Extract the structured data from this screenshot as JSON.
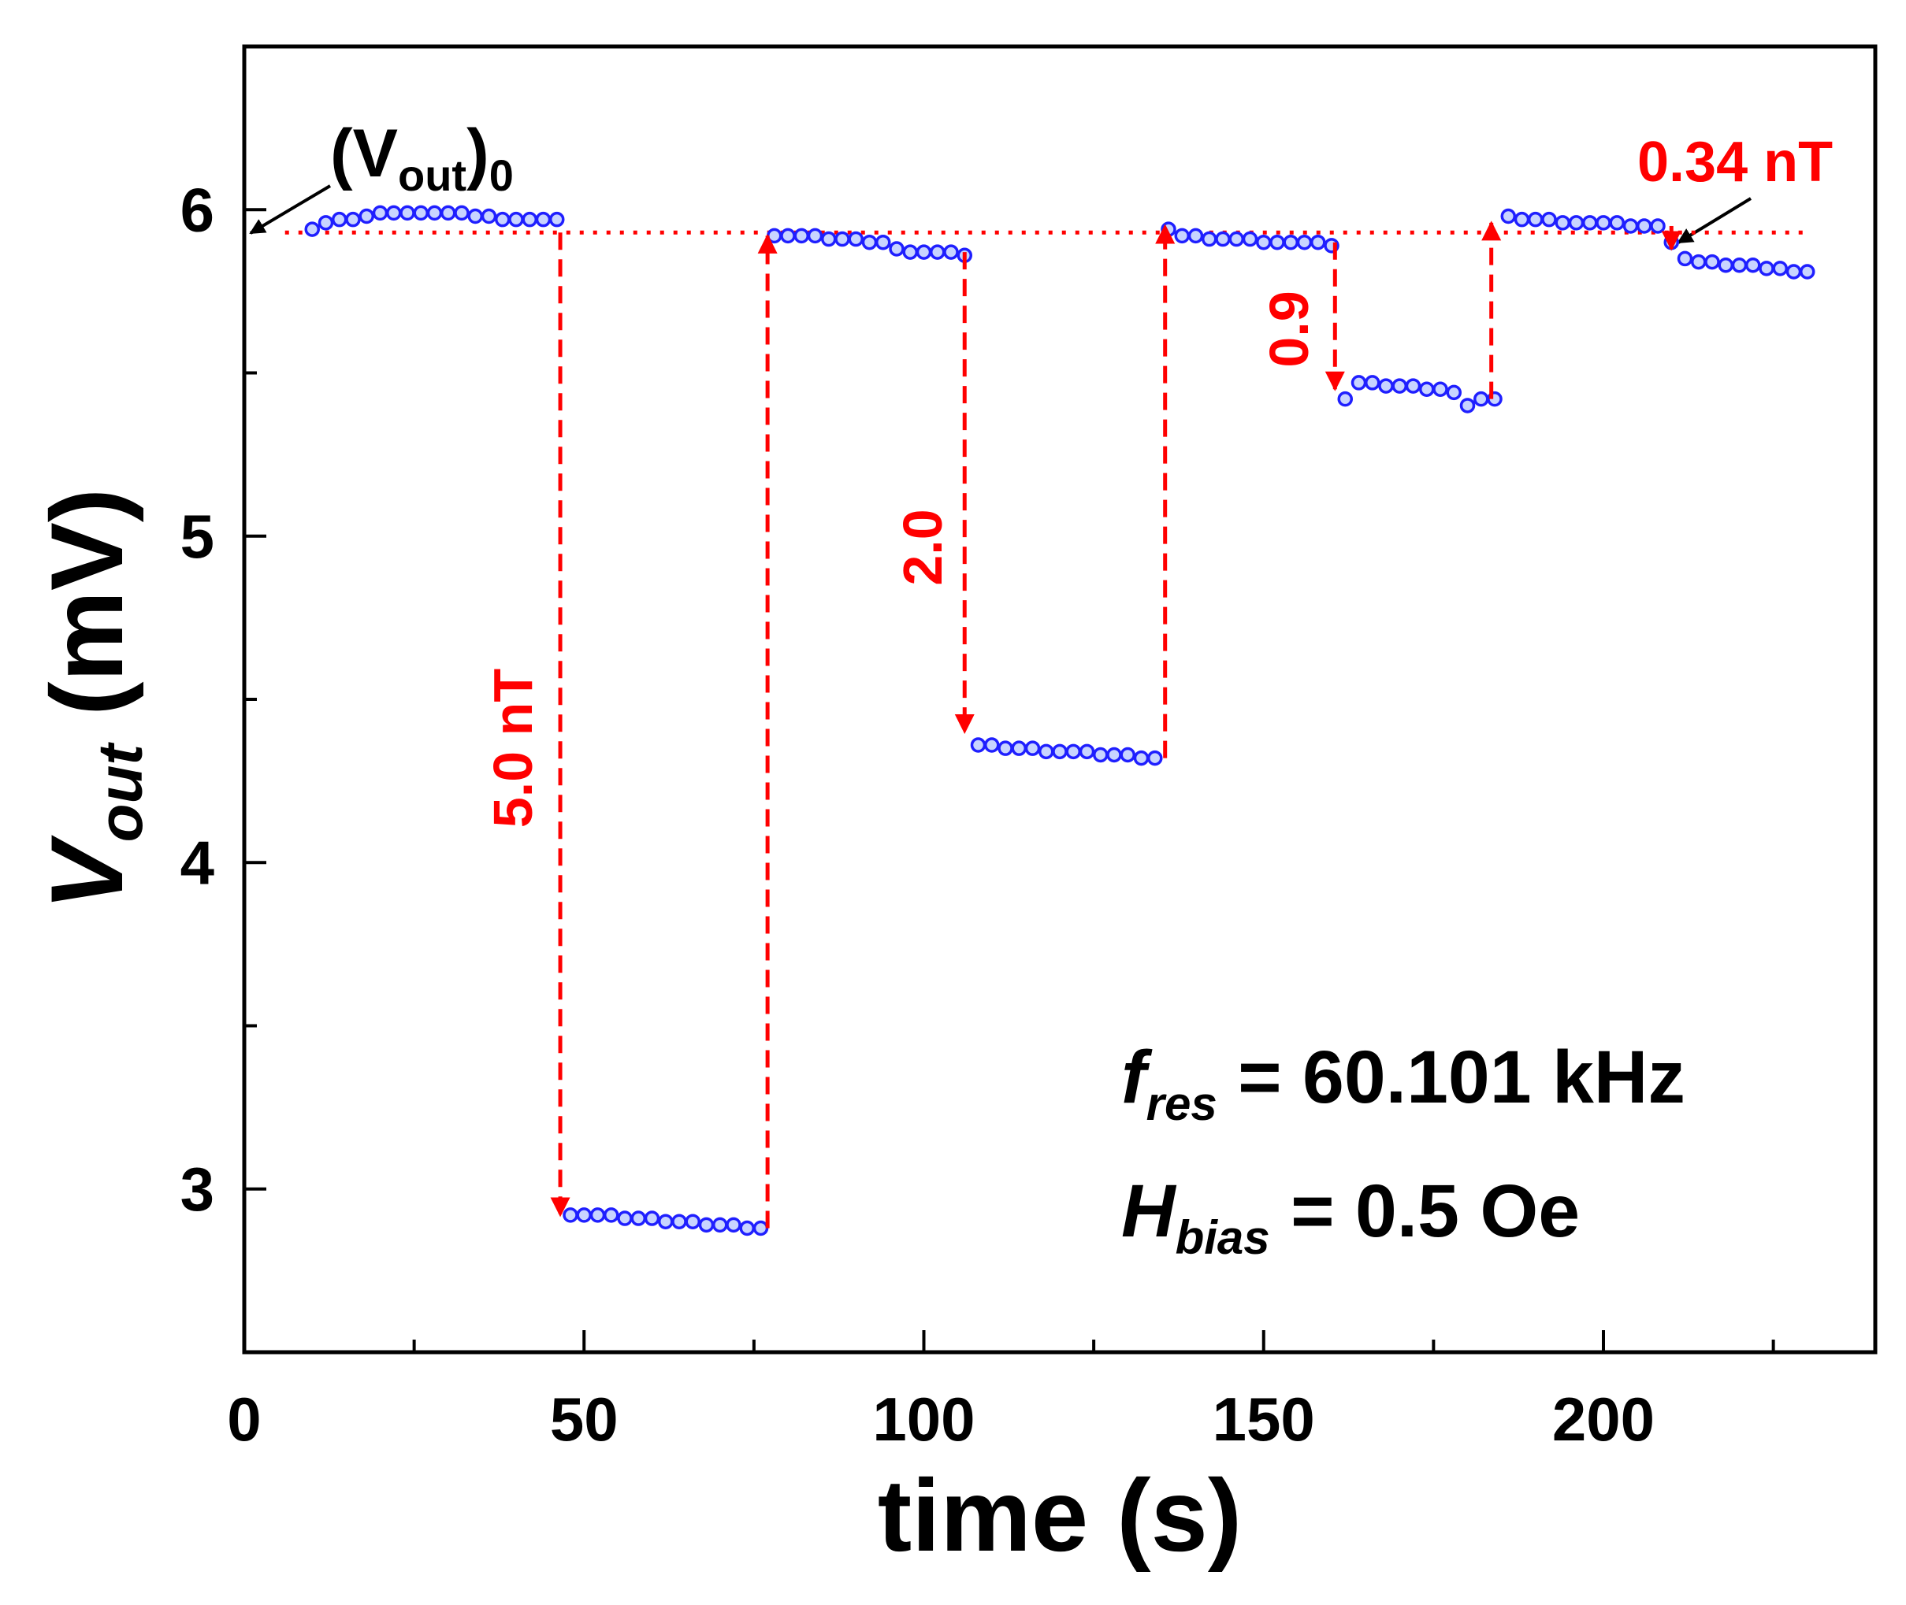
{
  "chart_data": {
    "type": "scatter",
    "xlabel": "time (s)",
    "ylabel": [
      "V",
      "out",
      " (mV)"
    ],
    "xlim": [
      0,
      240
    ],
    "ylim": [
      2.5,
      6.5
    ],
    "xticks": [
      0,
      50,
      100,
      150,
      200
    ],
    "yticks": [
      3,
      4,
      5,
      6
    ],
    "xminorticks": [
      25,
      75,
      125,
      175,
      225
    ],
    "yminorticks": [
      3.5,
      4.5,
      5.5
    ],
    "series": [
      {
        "color": "#1f1fff",
        "x": [
          10,
          12,
          14,
          16,
          18,
          20,
          22,
          24,
          26,
          28,
          30,
          32,
          34,
          36,
          38,
          40,
          42,
          44,
          46,
          48,
          50,
          52,
          54,
          56,
          58,
          60,
          62,
          64,
          66,
          68,
          70,
          72,
          74,
          76,
          78,
          80,
          82,
          84,
          86,
          88,
          90,
          92,
          94,
          96,
          98,
          100,
          102,
          104,
          106,
          108,
          110,
          112,
          114,
          116,
          118,
          120,
          122,
          124,
          126,
          128,
          130,
          132,
          134,
          136,
          138,
          140,
          142,
          144,
          146,
          148,
          150,
          152,
          154,
          156,
          158,
          160,
          162,
          164,
          166,
          168,
          170,
          172,
          174,
          176,
          178,
          180,
          182,
          184,
          186,
          188,
          190,
          192,
          194,
          196,
          198,
          200,
          202,
          204,
          206,
          208,
          210,
          212,
          214,
          216,
          218,
          220,
          222,
          224,
          226,
          228,
          230
        ],
        "values": [
          5.94,
          5.96,
          5.97,
          5.97,
          5.98,
          5.99,
          5.99,
          5.99,
          5.99,
          5.99,
          5.99,
          5.99,
          5.98,
          5.98,
          5.97,
          5.97,
          5.97,
          5.97,
          5.97,
          2.92,
          2.92,
          2.92,
          2.92,
          2.91,
          2.91,
          2.91,
          2.9,
          2.9,
          2.9,
          2.89,
          2.89,
          2.89,
          2.88,
          2.88,
          5.92,
          5.92,
          5.92,
          5.92,
          5.91,
          5.91,
          5.91,
          5.9,
          5.9,
          5.88,
          5.87,
          5.87,
          5.87,
          5.87,
          5.86,
          4.36,
          4.36,
          4.35,
          4.35,
          4.35,
          4.34,
          4.34,
          4.34,
          4.34,
          4.33,
          4.33,
          4.33,
          4.32,
          4.32,
          5.94,
          5.92,
          5.92,
          5.91,
          5.91,
          5.91,
          5.91,
          5.9,
          5.9,
          5.9,
          5.9,
          5.9,
          5.89,
          5.42,
          5.47,
          5.47,
          5.46,
          5.46,
          5.46,
          5.45,
          5.45,
          5.44,
          5.4,
          5.42,
          5.42,
          5.98,
          5.97,
          5.97,
          5.97,
          5.96,
          5.96,
          5.96,
          5.96,
          5.96,
          5.95,
          5.95,
          5.95,
          5.9,
          5.85,
          5.84,
          5.84,
          5.83,
          5.83,
          5.83,
          5.82,
          5.82,
          5.81,
          5.81
        ]
      }
    ],
    "reference_line": {
      "y": 5.93,
      "xlim": [
        6,
        230
      ],
      "color": "#ff0000"
    },
    "arrows": [
      {
        "x": 46.5,
        "from": 5.93,
        "to": 2.92
      },
      {
        "x": 77,
        "from": 2.88,
        "to": 5.92
      },
      {
        "x": 106,
        "from": 5.87,
        "to": 4.4
      },
      {
        "x": 135.5,
        "from": 4.32,
        "to": 5.95
      },
      {
        "x": 160.5,
        "from": 5.9,
        "to": 5.45
      },
      {
        "x": 183.5,
        "from": 5.42,
        "to": 5.96
      },
      {
        "x": 210,
        "from": 5.95,
        "to": 5.88
      }
    ],
    "annotations": [
      [
        "(V",
        "out",
        ")",
        "0"
      ],
      [
        "5.0 nT"
      ],
      [
        "2.0"
      ],
      [
        "0.9"
      ],
      [
        "0.34 nT"
      ],
      [
        "f",
        "res",
        " = 60.101 kHz"
      ],
      [
        "H",
        "bias",
        " = 0.5 Oe"
      ]
    ]
  }
}
